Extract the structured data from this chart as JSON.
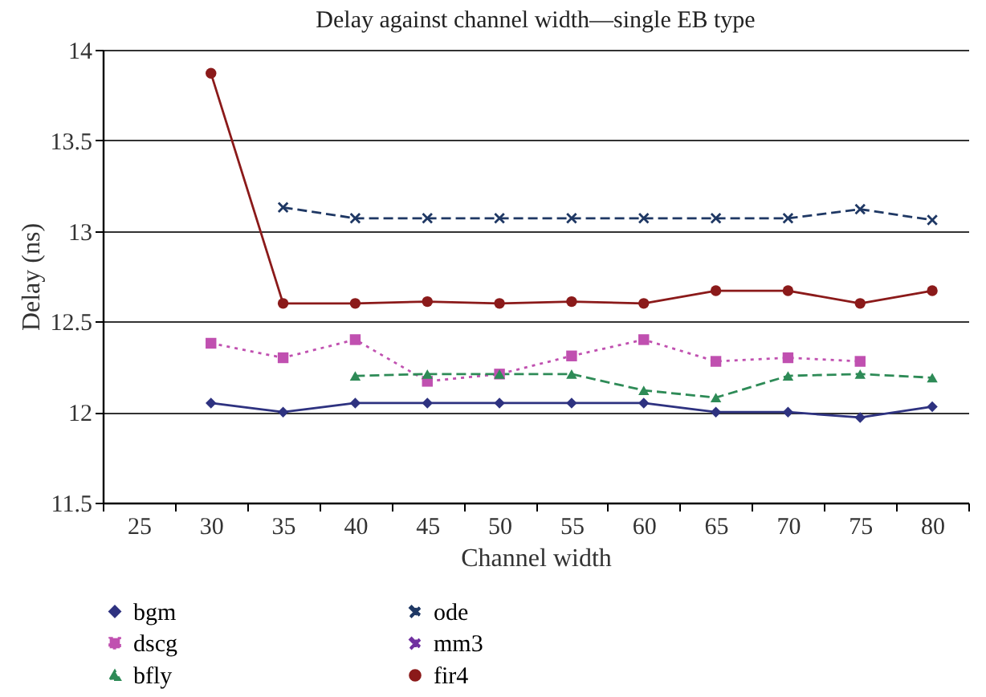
{
  "chart_data": {
    "type": "line",
    "title": "Delay against channel width—single EB type",
    "xlabel": "Channel width",
    "ylabel": "Delay (ns)",
    "categories": [
      "25",
      "30",
      "35",
      "40",
      "45",
      "50",
      "55",
      "60",
      "65",
      "70",
      "75",
      "80"
    ],
    "ylim": [
      11.5,
      14
    ],
    "yticks": [
      11.5,
      12,
      12.5,
      13,
      13.5,
      14
    ],
    "grid": "y",
    "legend": "bottom",
    "series": [
      {
        "name": "bgm",
        "color": "#2e3280",
        "marker": "diamond",
        "line_style": "solid",
        "values": [
          null,
          12.05,
          12.0,
          12.05,
          12.05,
          12.05,
          12.05,
          12.05,
          12.0,
          12.0,
          11.97,
          12.03
        ]
      },
      {
        "name": "dscg",
        "color": "#c050b0",
        "marker": "square",
        "line_style": "dotted",
        "values": [
          null,
          12.38,
          12.3,
          12.4,
          12.17,
          12.21,
          12.31,
          12.4,
          12.28,
          12.3,
          12.28,
          null
        ]
      },
      {
        "name": "bfly",
        "color": "#2e8b57",
        "marker": "triangle",
        "line_style": "dashed",
        "values": [
          null,
          null,
          null,
          12.2,
          12.21,
          12.21,
          12.21,
          12.12,
          12.08,
          12.2,
          12.21,
          12.19
        ]
      },
      {
        "name": "ode",
        "color": "#1f3864",
        "marker": "cross",
        "line_style": "dashed",
        "values": [
          null,
          null,
          13.13,
          13.07,
          13.07,
          13.07,
          13.07,
          13.07,
          13.07,
          13.07,
          13.12,
          13.06
        ]
      },
      {
        "name": "mm3",
        "color": "#7030a0",
        "marker": "cross",
        "line_style": "dashed",
        "values": [
          null,
          null,
          null,
          null,
          null,
          null,
          null,
          null,
          null,
          null,
          null,
          null
        ]
      },
      {
        "name": "fir4",
        "color": "#8b1a1a",
        "marker": "circle",
        "line_style": "solid",
        "values": [
          null,
          13.87,
          12.6,
          12.6,
          12.61,
          12.6,
          12.61,
          12.6,
          12.67,
          12.67,
          12.6,
          12.67
        ]
      }
    ]
  }
}
